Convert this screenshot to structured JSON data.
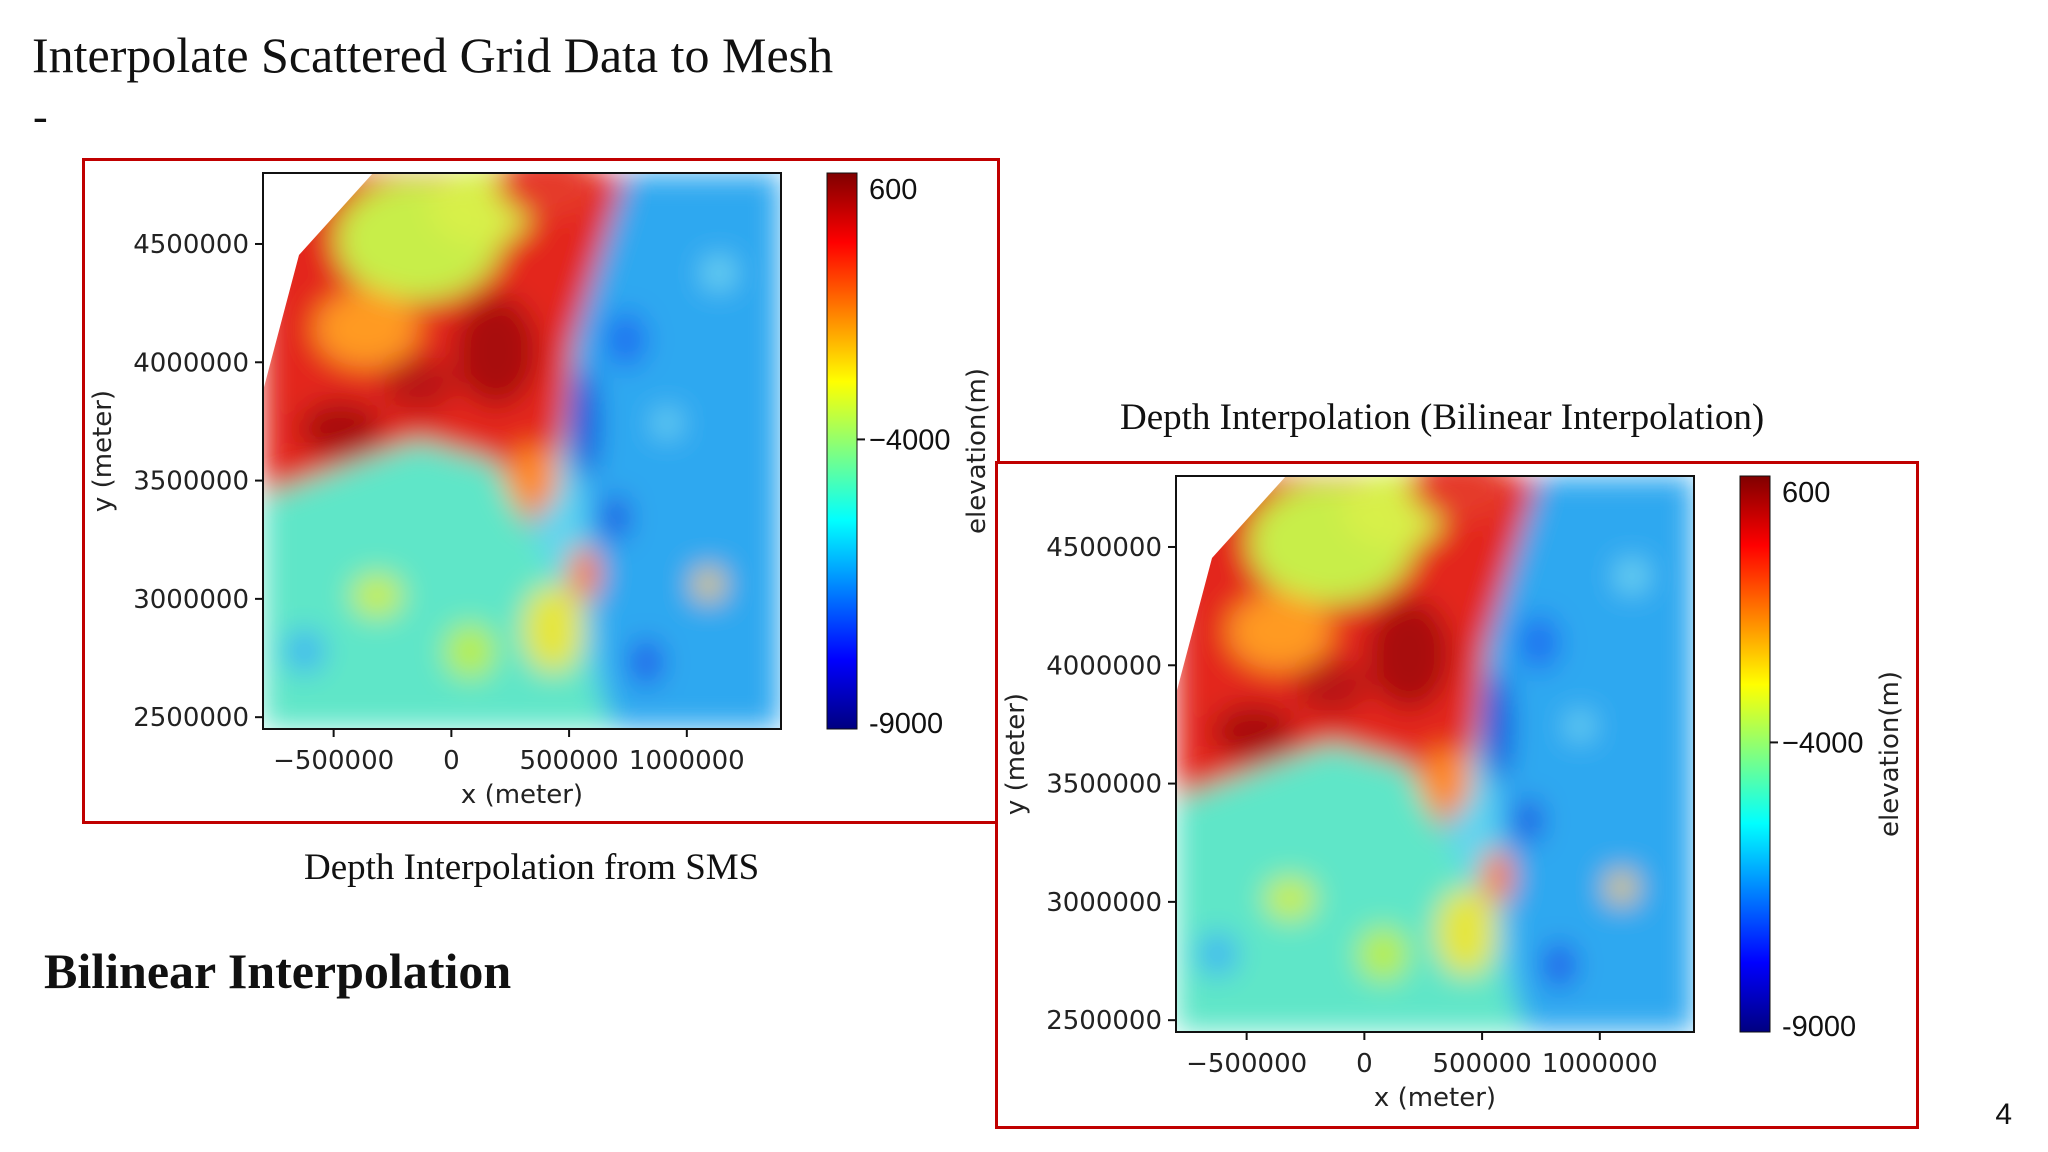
{
  "slide": {
    "title": "Interpolate Scattered Grid Data to Mesh",
    "dash": "-",
    "section_heading": "Bilinear Interpolation",
    "page_number": "4"
  },
  "colors": {
    "frame_border": "#c00000",
    "colormap": "jet",
    "cmap_stops": [
      "#800000",
      "#ff0000",
      "#ff8000",
      "#ffff00",
      "#80ff80",
      "#00ffff",
      "#0080ff",
      "#0000ff",
      "#000080"
    ]
  },
  "panels": [
    {
      "caption": "Depth Interpolation from SMS",
      "caption_position": "below"
    },
    {
      "caption": "Depth Interpolation (Bilinear Interpolation)",
      "caption_position": "above"
    }
  ],
  "chart_data": [
    {
      "type": "heatmap",
      "title": "Depth Interpolation from SMS",
      "xlabel": "x (meter)",
      "ylabel": "y (meter)",
      "x_ticks": [
        -500000,
        0,
        500000,
        1000000
      ],
      "x_tick_labels": [
        "−500000",
        "0",
        "500000",
        "1000000"
      ],
      "y_ticks": [
        2500000,
        3000000,
        3500000,
        4000000,
        4500000
      ],
      "y_tick_labels": [
        "2500000",
        "3000000",
        "3500000",
        "4000000",
        "4500000"
      ],
      "xlim": [
        -800000,
        1400000
      ],
      "ylim": [
        2450000,
        4800000
      ],
      "colorbar": {
        "label": "elevation(m)",
        "range": [
          -9000,
          600
        ],
        "tick_labels": [
          "600",
          "−4000",
          "-9000"
        ],
        "ticks": [
          600,
          -4000,
          -9000
        ]
      },
      "grid": false
    },
    {
      "type": "heatmap",
      "title": "Depth Interpolation (Bilinear Interpolation)",
      "xlabel": "x (meter)",
      "ylabel": "y (meter)",
      "x_ticks": [
        -500000,
        0,
        500000,
        1000000
      ],
      "x_tick_labels": [
        "−500000",
        "0",
        "500000",
        "1000000"
      ],
      "y_ticks": [
        2500000,
        3000000,
        3500000,
        4000000,
        4500000
      ],
      "y_tick_labels": [
        "2500000",
        "3000000",
        "3500000",
        "4000000",
        "4500000"
      ],
      "xlim": [
        -800000,
        1400000
      ],
      "ylim": [
        2450000,
        4800000
      ],
      "colorbar": {
        "label": "elevation(m)",
        "range": [
          -9000,
          600
        ],
        "tick_labels": [
          "600",
          "−4000",
          "-9000"
        ],
        "ticks": [
          600,
          -4000,
          -9000
        ]
      },
      "grid": false
    }
  ]
}
